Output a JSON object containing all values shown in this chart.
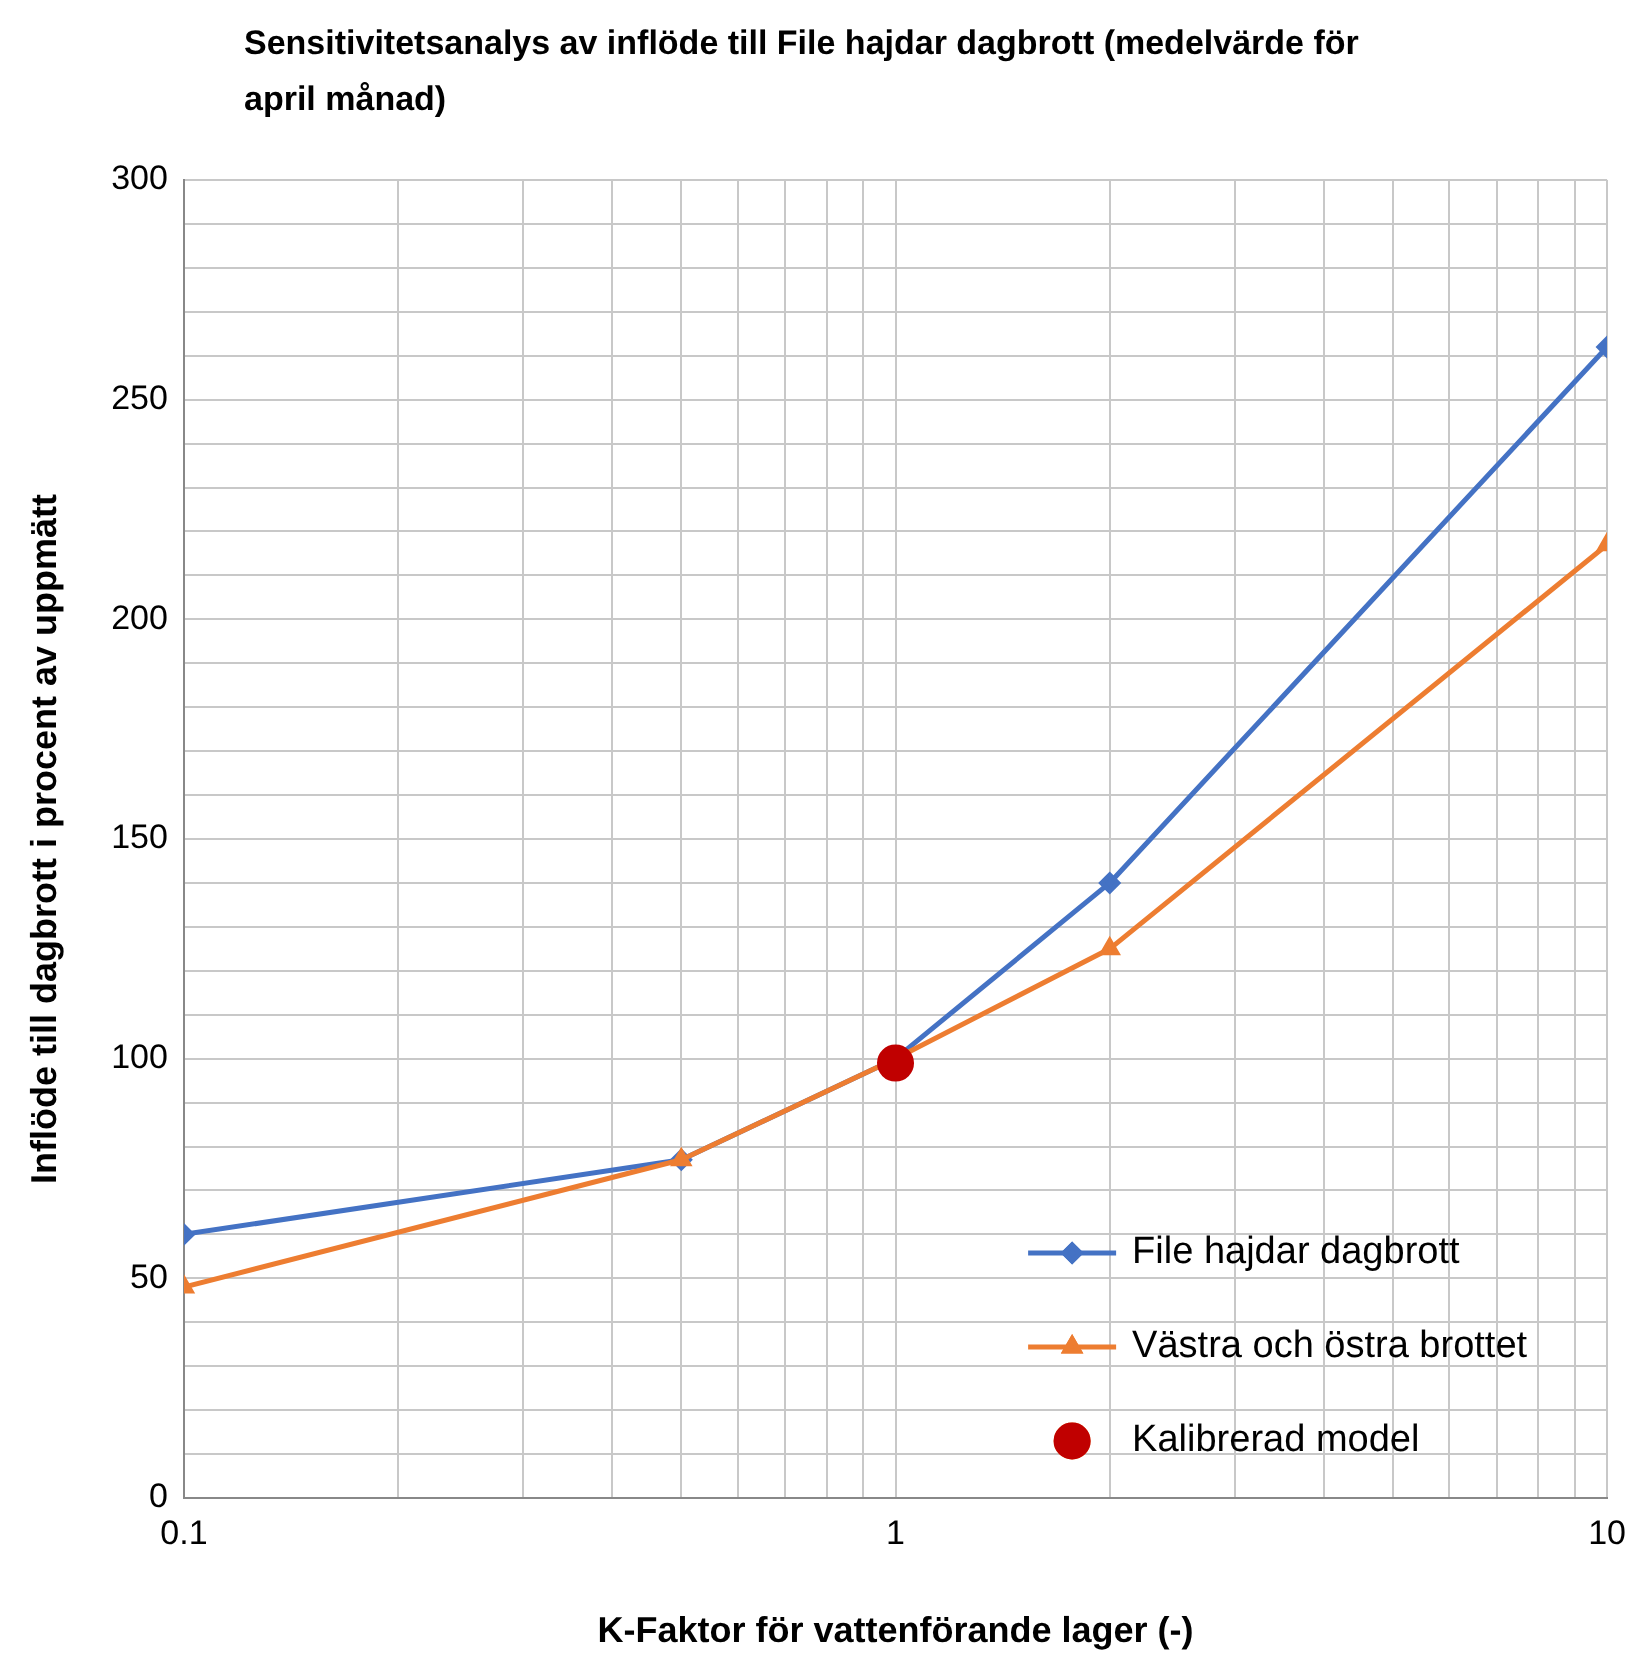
{
  "chart_data": {
    "type": "line",
    "title": "Sensitivitetsanalys av inflöde till File hajdar dagbrott (medelvärde för april månad)",
    "xlabel": "K-Faktor för vattenförande lager (-)",
    "ylabel": "Inflöde till dagbrott i procent av uppmätt",
    "log": "x",
    "grid": true,
    "legend": "bottom right",
    "xlim": [
      0.1,
      10
    ],
    "xticks": [
      0.1,
      {
        "value": 0.2,
        "label": null
      },
      {
        "value": 0.3,
        "label": null
      },
      {
        "value": 0.4,
        "label": null
      },
      {
        "value": 0.5,
        "label": null
      },
      {
        "value": 0.6,
        "label": null
      },
      {
        "value": 0.7,
        "label": null
      },
      {
        "value": 0.8,
        "label": null
      },
      {
        "value": 0.9,
        "label": null
      },
      1,
      {
        "value": 2,
        "label": null
      },
      {
        "value": 3,
        "label": null
      },
      {
        "value": 4,
        "label": null
      },
      {
        "value": 5,
        "label": null
      },
      {
        "value": 6,
        "label": null
      },
      {
        "value": 7,
        "label": null
      },
      {
        "value": 8,
        "label": null
      },
      {
        "value": 9,
        "label": null
      },
      10
    ],
    "ylim": [
      0,
      300
    ],
    "yticks": [
      0,
      {
        "value": 10,
        "label": null
      },
      {
        "value": 20,
        "label": null
      },
      {
        "value": 30,
        "label": null
      },
      {
        "value": 40,
        "label": null
      },
      50,
      {
        "value": 60,
        "label": null
      },
      {
        "value": 70,
        "label": null
      },
      {
        "value": 80,
        "label": null
      },
      {
        "value": 90,
        "label": null
      },
      100,
      {
        "value": 110,
        "label": null
      },
      {
        "value": 120,
        "label": null
      },
      {
        "value": 130,
        "label": null
      },
      {
        "value": 140,
        "label": null
      },
      150,
      {
        "value": 160,
        "label": null
      },
      {
        "value": 170,
        "label": null
      },
      {
        "value": 180,
        "label": null
      },
      {
        "value": 190,
        "label": null
      },
      200,
      {
        "value": 210,
        "label": null
      },
      {
        "value": 220,
        "label": null
      },
      {
        "value": 230,
        "label": null
      },
      {
        "value": 240,
        "label": null
      },
      250,
      {
        "value": 260,
        "label": null
      },
      {
        "value": 270,
        "label": null
      },
      {
        "value": 280,
        "label": null
      },
      {
        "value": 290,
        "label": null
      },
      300
    ],
    "series": [
      {
        "name": "File hajdar dagbrott",
        "type": "line",
        "color": "#4472c4",
        "marker": "diamond",
        "x": [
          0.1,
          0.5,
          1,
          2,
          10
        ],
        "values": [
          60,
          77,
          100,
          140,
          262
        ]
      },
      {
        "name": "Västra och östra brottet",
        "type": "line",
        "color": "#ed7d31",
        "marker": "triangle",
        "x": [
          0.1,
          0.5,
          1,
          2,
          10
        ],
        "values": [
          48,
          77,
          100,
          125,
          217
        ]
      },
      {
        "name": "Kalibrerad model",
        "type": "scatter",
        "color": "#c00000",
        "marker": "circle",
        "x": [
          1
        ],
        "values": [
          99
        ]
      }
    ]
  }
}
